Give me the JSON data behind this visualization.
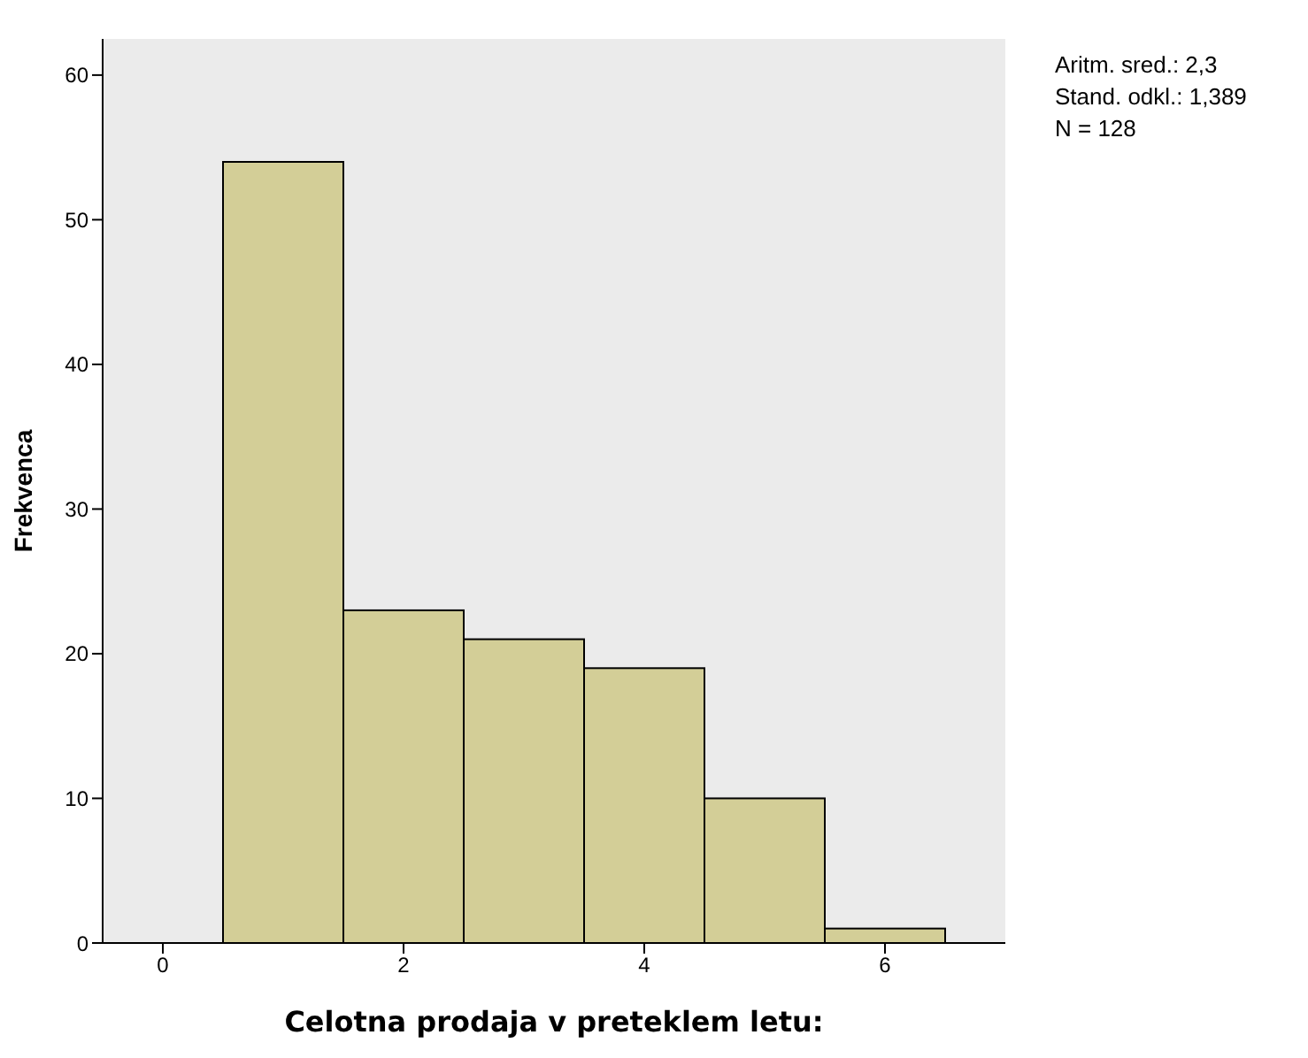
{
  "chart_data": {
    "type": "histogram",
    "xlabel": "Celotna prodaja v preteklem letu:",
    "ylabel": "Frekvenca",
    "bins": [
      0.5,
      1.5,
      2.5,
      3.5,
      4.5,
      5.5,
      6.5
    ],
    "values": [
      54,
      23,
      21,
      19,
      10,
      1
    ],
    "color": "#d3ce97",
    "xlim": [
      -0.5,
      7
    ],
    "xticks": [
      0,
      2,
      4,
      6
    ],
    "ylim": [
      0,
      62.5
    ],
    "yticks": [
      0,
      10,
      20,
      30,
      40,
      50,
      60
    ],
    "grid": false,
    "annotations": [
      "Aritm. sred.: 2,3",
      "Stand. odkl.: 1,389",
      "N = 128"
    ]
  }
}
